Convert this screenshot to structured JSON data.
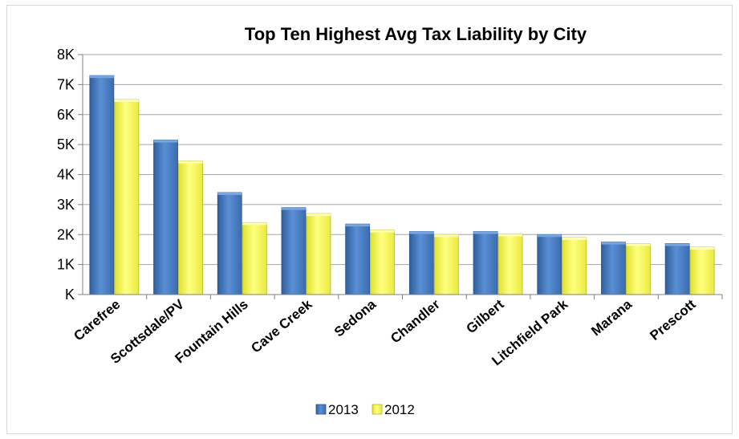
{
  "chart_data": {
    "type": "bar",
    "title": "Top Ten Highest Avg Tax Liability by City",
    "xlabel": "",
    "ylabel": "",
    "categories": [
      "Carefree",
      "Scottsdale/PV",
      "Fountain Hills",
      "Cave Creek",
      "Sedona",
      "Chandler",
      "Gilbert",
      "Litchfield Park",
      "Marana",
      "Prescott"
    ],
    "series": [
      {
        "name": "2013",
        "color": "#4a7fc5",
        "values": [
          7300,
          5150,
          3400,
          2900,
          2350,
          2100,
          2100,
          2000,
          1750,
          1700
        ]
      },
      {
        "name": "2012",
        "color": "#ffff66",
        "values": [
          6500,
          4450,
          2400,
          2700,
          2150,
          2000,
          2020,
          1900,
          1700,
          1580
        ]
      }
    ],
    "ylim": [
      0,
      8000
    ],
    "yticks": [
      {
        "value": 0,
        "label": "K"
      },
      {
        "value": 1000,
        "label": "1K"
      },
      {
        "value": 2000,
        "label": "2K"
      },
      {
        "value": 3000,
        "label": "3K"
      },
      {
        "value": 4000,
        "label": "4K"
      },
      {
        "value": 5000,
        "label": "5K"
      },
      {
        "value": 6000,
        "label": "6K"
      },
      {
        "value": 7000,
        "label": "7K"
      },
      {
        "value": 8000,
        "label": "8K"
      }
    ],
    "grid": true,
    "legend_position": "bottom"
  }
}
